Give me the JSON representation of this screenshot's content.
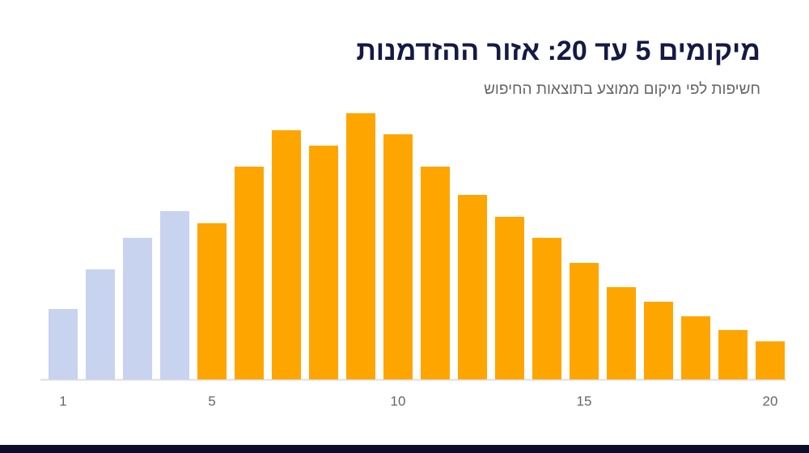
{
  "chart_data": {
    "type": "bar",
    "title": "מיקומים 5 עד 20: אזור ההזדמנות",
    "subtitle": "חשיפות לפי מיקום ממוצע בתוצאות החיפוש",
    "x": [
      1,
      2,
      3,
      4,
      5,
      6,
      7,
      8,
      9,
      10,
      11,
      12,
      13,
      14,
      15,
      16,
      17,
      18,
      19,
      20
    ],
    "values": [
      87,
      136,
      175,
      208,
      193,
      263,
      308,
      289,
      329,
      303,
      263,
      228,
      201,
      175,
      144,
      114,
      96,
      78,
      61,
      47
    ],
    "colors": [
      "#c8d3f0",
      "#c8d3f0",
      "#c8d3f0",
      "#c8d3f0",
      "#ffa500",
      "#ffa500",
      "#ffa500",
      "#ffa500",
      "#ffa500",
      "#ffa500",
      "#ffa500",
      "#ffa500",
      "#ffa500",
      "#ffa500",
      "#ffa500",
      "#ffa500",
      "#ffa500",
      "#ffa500",
      "#ffa500",
      "#ffa500"
    ],
    "xlim": [
      0.5,
      20.5
    ],
    "xticks": [
      1,
      5,
      10,
      15,
      20
    ]
  }
}
